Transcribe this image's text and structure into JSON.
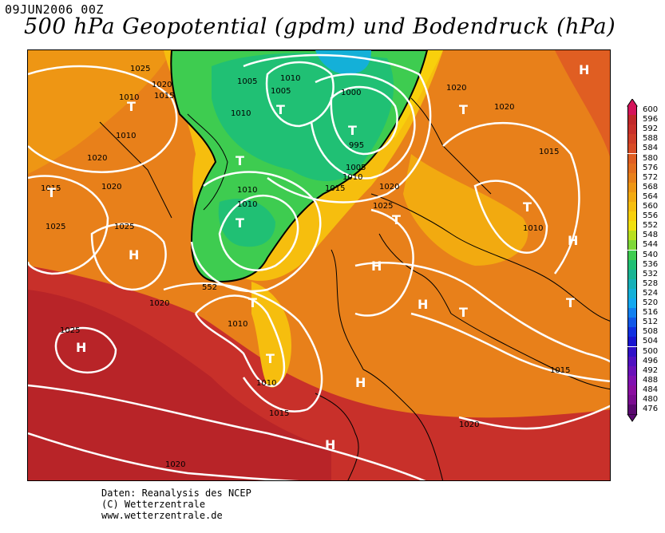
{
  "header": {
    "date": "09JUN2006 00Z",
    "title": "500 hPa Geopotential (gpdm) und Bodendruck (hPa)"
  },
  "map": {
    "contour_label_552": "552",
    "high_label": "H",
    "low_label": "T",
    "isobar_labels": [
      "1025",
      "1020",
      "1015",
      "1010",
      "1010",
      "1005",
      "1010",
      "1005",
      "1010",
      "1000",
      "995",
      "1005",
      "1010",
      "1015",
      "1020",
      "1020",
      "1015",
      "1025",
      "1010",
      "1010",
      "1025",
      "1020",
      "1010",
      "1010",
      "1015",
      "1020",
      "1025",
      "1010",
      "1015",
      "1020",
      "1025",
      "1020",
      "1020",
      "1015",
      "1020"
    ]
  },
  "legend": {
    "values": [
      "600",
      "596",
      "592",
      "588",
      "584",
      "580",
      "576",
      "572",
      "568",
      "564",
      "560",
      "556",
      "552",
      "548",
      "544",
      "540",
      "536",
      "532",
      "528",
      "524",
      "520",
      "516",
      "512",
      "508",
      "504",
      "500",
      "496",
      "492",
      "488",
      "484",
      "480",
      "476"
    ],
    "colors": [
      "#d4145a",
      "#c0282a",
      "#c8302a",
      "#d03e28",
      "#d84c26",
      "#e05e22",
      "#e46e1e",
      "#e8801a",
      "#ee9614",
      "#f2aa10",
      "#f6be0e",
      "#f8d00c",
      "#f0e010",
      "#b8e020",
      "#7ed838",
      "#3ecc50",
      "#20c074",
      "#18b494",
      "#16b0b8",
      "#14b0d8",
      "#12a8f0",
      "#1080f0",
      "#1058e8",
      "#1030e0",
      "#1814d0",
      "#3010c8",
      "#5010c0",
      "#6a10b8",
      "#8010b0",
      "#8a0ea0",
      "#7a0c90",
      "#5a0870"
    ]
  },
  "credits": {
    "line1": "Daten: Reanalysis des NCEP",
    "line2": "(C) Wetterzentrale",
    "line3": "www.wetterzentrale.de"
  }
}
